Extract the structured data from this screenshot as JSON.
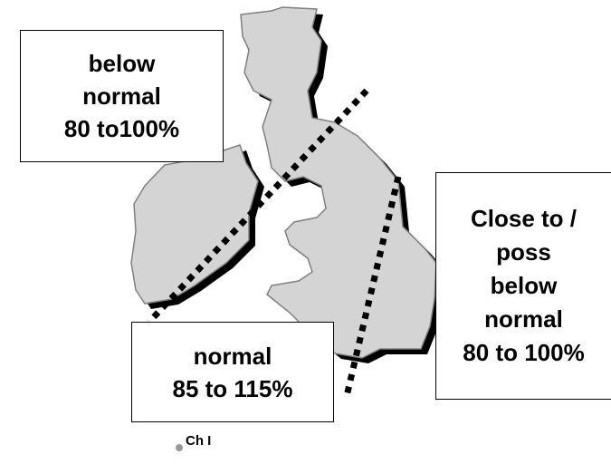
{
  "labels": [
    {
      "lines": [
        "below",
        "normal",
        "80 to100%"
      ]
    },
    {
      "lines": [
        "normal",
        "85 to 115%"
      ]
    },
    {
      "lines": [
        "Close to /",
        "poss",
        "below",
        "normal",
        "80 to 100%"
      ]
    }
  ],
  "channel_islands": "Ch I"
}
